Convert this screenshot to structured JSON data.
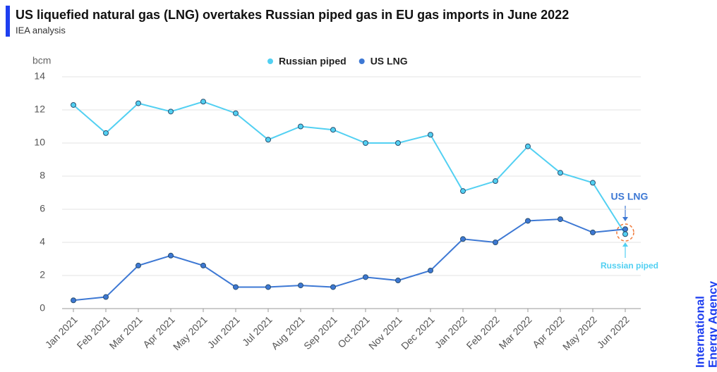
{
  "chart_data": {
    "type": "line",
    "title": "US liquefied natural gas (LNG) overtakes Russian piped gas in EU gas imports in June 2022",
    "subtitle": "IEA analysis",
    "y_label": "bcm",
    "categories": [
      "Jan 2021",
      "Feb 2021",
      "Mar 2021",
      "Apr 2021",
      "May 2021",
      "Jun 2021",
      "Jul 2021",
      "Aug 2021",
      "Sep 2021",
      "Oct 2021",
      "Nov 2021",
      "Dec 2021",
      "Jan 2022",
      "Feb 2022",
      "Mar 2022",
      "Apr 2022",
      "May 2022",
      "Jun 2022"
    ],
    "series": [
      {
        "name": "Russian piped",
        "color": "#52d0f2",
        "values": [
          12.3,
          10.6,
          12.4,
          11.9,
          12.5,
          11.8,
          10.2,
          11.0,
          10.8,
          10.0,
          10.0,
          10.5,
          7.1,
          7.7,
          9.8,
          8.2,
          7.6,
          4.5
        ]
      },
      {
        "name": "US LNG",
        "color": "#3d78d4",
        "values": [
          0.5,
          0.7,
          2.6,
          3.2,
          2.6,
          1.3,
          1.3,
          1.4,
          1.3,
          1.9,
          1.7,
          2.3,
          4.2,
          4.0,
          5.3,
          5.4,
          4.6,
          4.8
        ]
      }
    ],
    "ylim": [
      0,
      14
    ],
    "yticks": [
      0,
      2,
      4,
      6,
      8,
      10,
      12,
      14
    ],
    "grid": true,
    "legend": "top",
    "annotations": [
      "US LNG",
      "Russian piped"
    ],
    "brand": [
      "International",
      "Energy Agency"
    ]
  }
}
